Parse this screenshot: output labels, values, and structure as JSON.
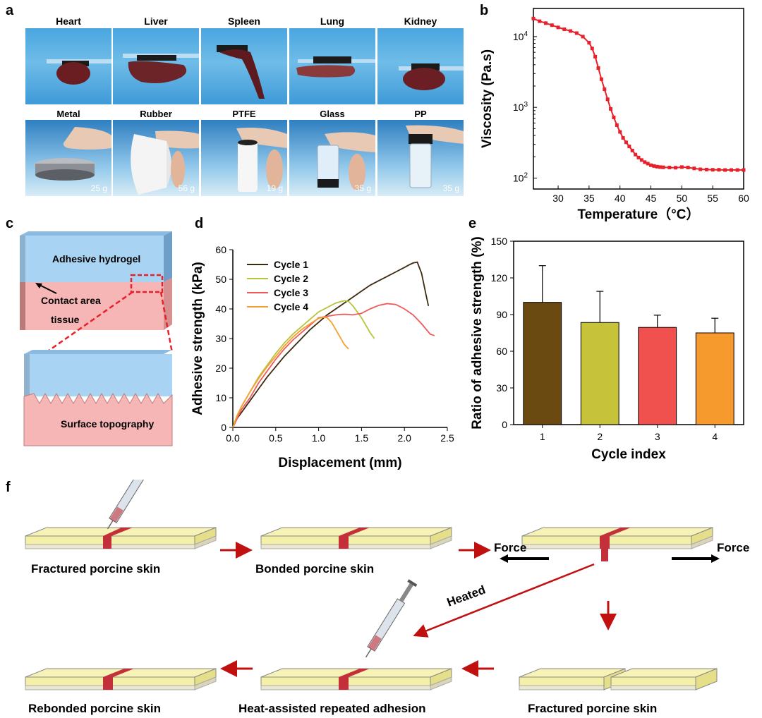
{
  "panels": {
    "a": "a",
    "b": "b",
    "c": "c",
    "d": "d",
    "e": "e",
    "f": "f"
  },
  "panel_a": {
    "organs": [
      "Heart",
      "Liver",
      "Spleen",
      "Lung",
      "Kidney"
    ],
    "materials": [
      "Metal",
      "Rubber",
      "PTFE",
      "Glass",
      "PP"
    ],
    "weights": [
      "25 g",
      "56 g",
      "19 g",
      "35 g",
      "35 g"
    ]
  },
  "panel_c": {
    "hydrogel_label": "Adhesive hydrogel",
    "contact_label": "Contact area",
    "tissue_label": "tissue",
    "surface_label": "Surface topography"
  },
  "panel_f": {
    "step1": "Fractured porcine skin",
    "step2": "Bonded porcine skin",
    "force_left": "Force",
    "force_right": "Force",
    "heated": "Heated",
    "step4": "Fractured porcine skin",
    "step5": "Heat-assisted repeated adhesion",
    "step6": "Rebonded porcine skin"
  },
  "colors": {
    "red": "#e8202a",
    "cycle1": "#3c2a10",
    "cycle2": "#b8c43a",
    "cycle3": "#f05a5a",
    "cycle4": "#f5a030",
    "blue_gel": "#a9d3f2",
    "tissue": "#f7b6b6",
    "skin": "#f5f0a8",
    "band": "#c4303a"
  },
  "chart_data": [
    {
      "id": "b",
      "type": "line",
      "xlabel": "Temperature（°C）",
      "ylabel": "Viscosity (Pa.s)",
      "xlim": [
        26,
        60
      ],
      "yscale": "log",
      "ylim": [
        70,
        25000
      ],
      "xticks": [
        30,
        35,
        40,
        45,
        50,
        55,
        60
      ],
      "yticks": [
        {
          "v": 100,
          "m": "10",
          "e": "2"
        },
        {
          "v": 1000,
          "m": "10",
          "e": "3"
        },
        {
          "v": 10000,
          "m": "10",
          "e": "4"
        }
      ],
      "series": [
        {
          "name": "viscosity",
          "color": "#e8202a",
          "x": [
            26,
            27,
            28,
            29,
            30,
            31,
            32,
            33,
            34,
            35,
            35.5,
            36,
            36.5,
            37,
            37.5,
            38,
            38.5,
            39,
            39.5,
            40,
            40.5,
            41,
            41.5,
            42,
            42.5,
            43,
            43.5,
            44,
            44.5,
            45,
            45.5,
            46,
            46.5,
            47,
            48,
            49,
            50,
            51,
            52,
            53,
            54,
            55,
            56,
            57,
            58,
            59,
            60
          ],
          "y": [
            18000,
            16500,
            15500,
            14500,
            13500,
            12700,
            12000,
            11200,
            10000,
            8200,
            6800,
            5200,
            3600,
            2500,
            1800,
            1300,
            950,
            720,
            560,
            450,
            370,
            320,
            280,
            245,
            215,
            195,
            180,
            168,
            160,
            152,
            148,
            145,
            143,
            142,
            141,
            140,
            143,
            141,
            137,
            133,
            132,
            131,
            131,
            130,
            130,
            130,
            130
          ]
        }
      ]
    },
    {
      "id": "d",
      "type": "line",
      "xlabel": "Displacement (mm)",
      "ylabel": "Adhesive strength (kPa)",
      "xlim": [
        0,
        2.5
      ],
      "ylim": [
        0,
        60
      ],
      "xticks": [
        "0.0",
        "0.5",
        "1.0",
        "1.5",
        "2.0",
        "2.5"
      ],
      "yticks": [
        "0",
        "10",
        "20",
        "30",
        "40",
        "50",
        "60"
      ],
      "series": [
        {
          "name": "Cycle 1",
          "color": "#3c2a10",
          "x": [
            0,
            0.05,
            0.1,
            0.2,
            0.3,
            0.4,
            0.5,
            0.6,
            0.7,
            0.8,
            0.9,
            1.0,
            1.1,
            1.2,
            1.3,
            1.4,
            1.5,
            1.6,
            1.7,
            1.8,
            1.9,
            2.0,
            2.05,
            2.1,
            2.15,
            2.2,
            2.25,
            2.28
          ],
          "y": [
            0,
            3,
            5,
            9,
            13,
            17,
            20.5,
            24,
            27,
            30,
            33,
            35.5,
            38,
            40,
            42,
            44,
            46,
            48,
            49.5,
            51,
            52.5,
            54,
            54.8,
            55.5,
            55.8,
            52,
            45,
            41
          ]
        },
        {
          "name": "Cycle 2",
          "color": "#b8c43a",
          "x": [
            0,
            0.05,
            0.1,
            0.2,
            0.3,
            0.4,
            0.5,
            0.6,
            0.7,
            0.8,
            0.9,
            1.0,
            1.1,
            1.2,
            1.3,
            1.35,
            1.4,
            1.5,
            1.6,
            1.65
          ],
          "y": [
            0,
            4,
            7,
            12,
            17,
            21,
            25,
            28.5,
            31.5,
            34,
            36.5,
            39,
            40.5,
            42,
            42.8,
            42.5,
            41,
            37,
            32,
            30
          ]
        },
        {
          "name": "Cycle 3",
          "color": "#f05a5a",
          "x": [
            0,
            0.05,
            0.1,
            0.2,
            0.3,
            0.4,
            0.5,
            0.6,
            0.7,
            0.8,
            0.9,
            1.0,
            1.1,
            1.2,
            1.3,
            1.4,
            1.5,
            1.6,
            1.7,
            1.8,
            1.9,
            2.0,
            2.1,
            2.2,
            2.3,
            2.35
          ],
          "y": [
            0,
            3,
            6,
            10,
            15,
            19,
            23,
            26.5,
            29.5,
            32,
            34.5,
            37,
            37.5,
            38,
            38.2,
            38,
            38.5,
            40,
            41.2,
            41.8,
            41.5,
            40,
            38,
            35,
            31.5,
            31
          ]
        },
        {
          "name": "Cycle 4",
          "color": "#f5a030",
          "x": [
            0,
            0.05,
            0.1,
            0.2,
            0.3,
            0.4,
            0.5,
            0.6,
            0.7,
            0.8,
            0.9,
            1.0,
            1.05,
            1.1,
            1.15,
            1.2,
            1.25,
            1.3,
            1.35
          ],
          "y": [
            0,
            4,
            7,
            12,
            16.5,
            20.5,
            24,
            27.5,
            30.5,
            33,
            35,
            36.8,
            37.2,
            37,
            35.5,
            33,
            30.5,
            28,
            26.5
          ]
        }
      ]
    },
    {
      "id": "e",
      "type": "bar",
      "xlabel": "Cycle index",
      "ylabel": "Ratio of adhesive strength (%)",
      "ylim": [
        0,
        150
      ],
      "yticks": [
        "0",
        "30",
        "60",
        "90",
        "120",
        "150"
      ],
      "categories": [
        "1",
        "2",
        "3",
        "4"
      ],
      "values": [
        100,
        83.5,
        79.5,
        75
      ],
      "errors": [
        30,
        25.5,
        10,
        12
      ],
      "colors": [
        "#6b4a12",
        "#c6c23a",
        "#f0504e",
        "#f79a2e"
      ]
    }
  ]
}
